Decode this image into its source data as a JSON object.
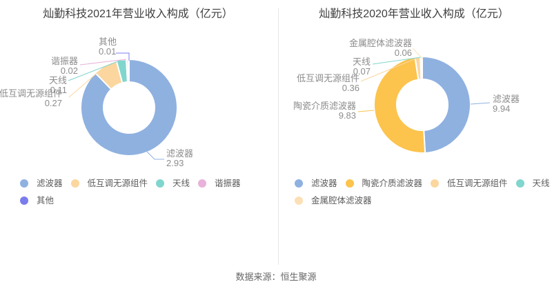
{
  "source_note": "数据来源：恒生聚源",
  "chart_data": [
    {
      "type": "pie",
      "subtype": "donut",
      "title": "灿勤科技2021年营业收入构成（亿元）",
      "unit": "亿元",
      "legend_position": "bottom",
      "series": [
        {
          "name": "滤波器",
          "value": 2.93,
          "color": "#8fb1e0"
        },
        {
          "name": "低互调无源组件",
          "value": 0.27,
          "color": "#fbd69e"
        },
        {
          "name": "天线",
          "value": 0.11,
          "color": "#80d6cd"
        },
        {
          "name": "谐振器",
          "value": 0.02,
          "color": "#e8b2da"
        },
        {
          "name": "其他",
          "value": 0.01,
          "color": "#7b7cec"
        }
      ],
      "legend": [
        "滤波器",
        "低互调无源组件",
        "天线",
        "谐振器",
        "其他"
      ]
    },
    {
      "type": "pie",
      "subtype": "donut",
      "title": "灿勤科技2020年营业收入构成（亿元）",
      "unit": "亿元",
      "legend_position": "bottom",
      "series": [
        {
          "name": "滤波器",
          "value": 9.94,
          "color": "#8fb1e0"
        },
        {
          "name": "陶瓷介质滤波器",
          "value": 9.83,
          "color": "#fcc34d"
        },
        {
          "name": "低互调无源组件",
          "value": 0.36,
          "color": "#fbd69e"
        },
        {
          "name": "天线",
          "value": 0.07,
          "color": "#80d6cd"
        },
        {
          "name": "金属腔体滤波器",
          "value": 0.06,
          "color": "#fce0b5"
        }
      ],
      "legend": [
        "滤波器",
        "陶瓷介质滤波器",
        "低互调无源组件",
        "天线",
        "金属腔体滤波器"
      ]
    }
  ]
}
